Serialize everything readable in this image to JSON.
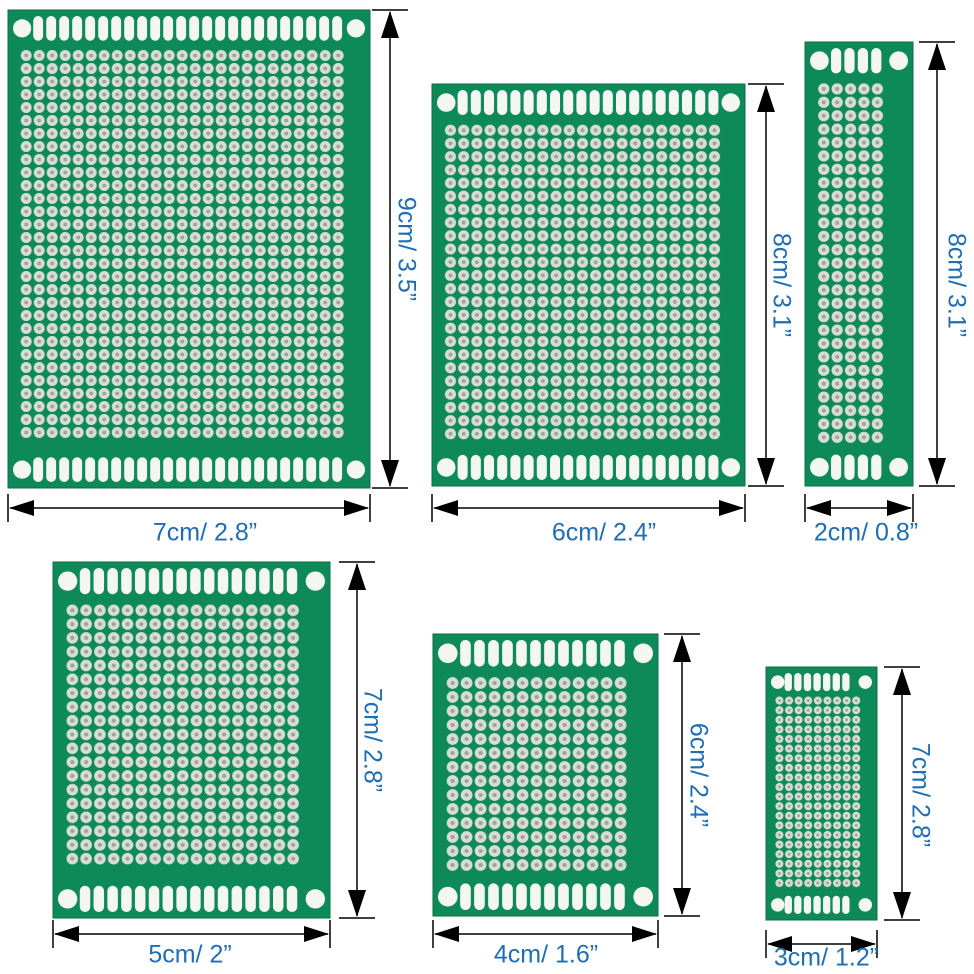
{
  "colors": {
    "board_green": "#0d8a58",
    "hole_silver": "#d9dcd6",
    "label_blue": "#1f6db3",
    "arrow": "#000000"
  },
  "boards": [
    {
      "name": "board-7x9",
      "width_label": "7cm/ 2.8”",
      "height_label": "9cm/ 3.5”"
    },
    {
      "name": "board-6x8",
      "width_label": "6cm/ 2.4”",
      "height_label": "8cm/ 3.1”"
    },
    {
      "name": "board-2x8",
      "width_label": "2cm/ 0.8”",
      "height_label": "8cm/ 3.1”"
    },
    {
      "name": "board-5x7",
      "width_label": "5cm/ 2”",
      "height_label": "7cm/ 2.8”"
    },
    {
      "name": "board-4x6",
      "width_label": "4cm/ 1.6”",
      "height_label": "6cm/ 2.4”"
    },
    {
      "name": "board-3x7",
      "width_label": "3cm/ 1.2”",
      "height_label": "7cm/ 2.8”"
    }
  ]
}
